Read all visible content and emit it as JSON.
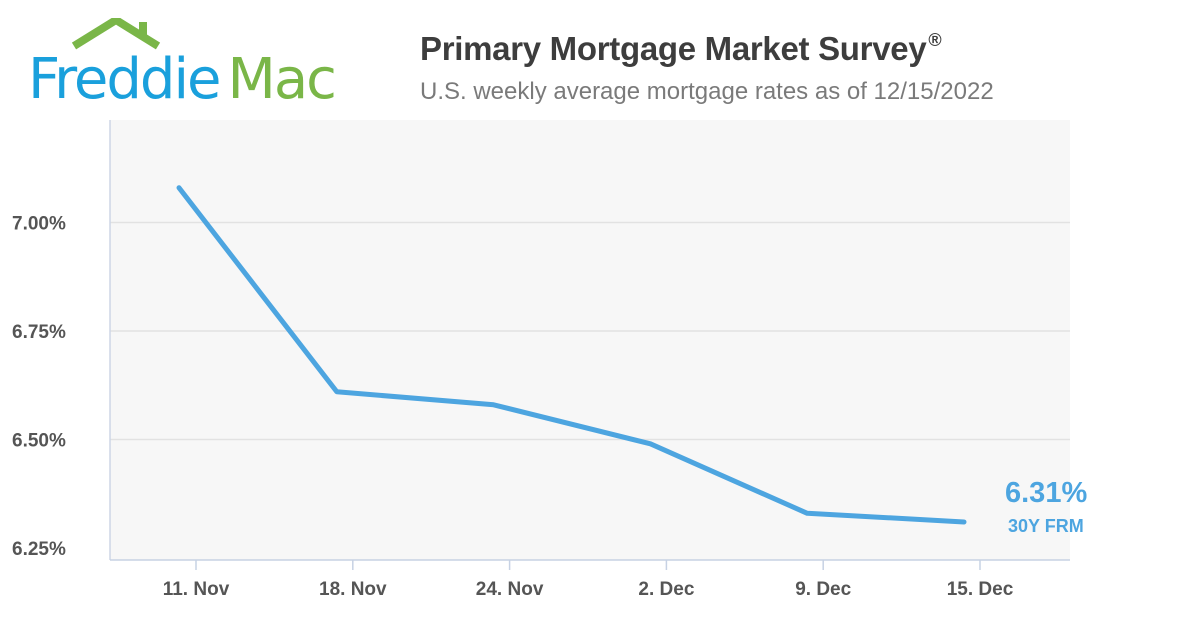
{
  "header": {
    "brand_part1": "Freddie",
    "brand_part2": "Mac",
    "title": "Primary Mortgage Market Survey",
    "title_mark": "®",
    "subtitle": "U.S. weekly average mortgage rates as of 12/15/2022"
  },
  "colors": {
    "brand_blue": "#1aa0dc",
    "brand_green": "#7ab648",
    "series_line": "#4da5e0",
    "plot_background": "#f7f7f7",
    "grid": "#e2e2e2"
  },
  "icons": {
    "logo_roof": "house-roof-icon"
  },
  "chart_data": {
    "type": "line",
    "title": "",
    "xlabel": "",
    "ylabel": "",
    "categories": [
      "11. Nov",
      "18. Nov",
      "24. Nov",
      "2. Dec",
      "9. Dec",
      "15. Dec"
    ],
    "series": [
      {
        "values": [
          7.08,
          6.61,
          6.58,
          6.49,
          6.33,
          6.31
        ]
      }
    ],
    "yticks": [
      6.25,
      6.5,
      6.75,
      7.0
    ],
    "ytick_labels": [
      "6.25%",
      "6.50%",
      "6.75%",
      "7.00%"
    ],
    "ylim": [
      6.25,
      7.25
    ],
    "grid": true,
    "end_label": {
      "value": "6.31%",
      "series_label": "30Y FRM"
    }
  }
}
